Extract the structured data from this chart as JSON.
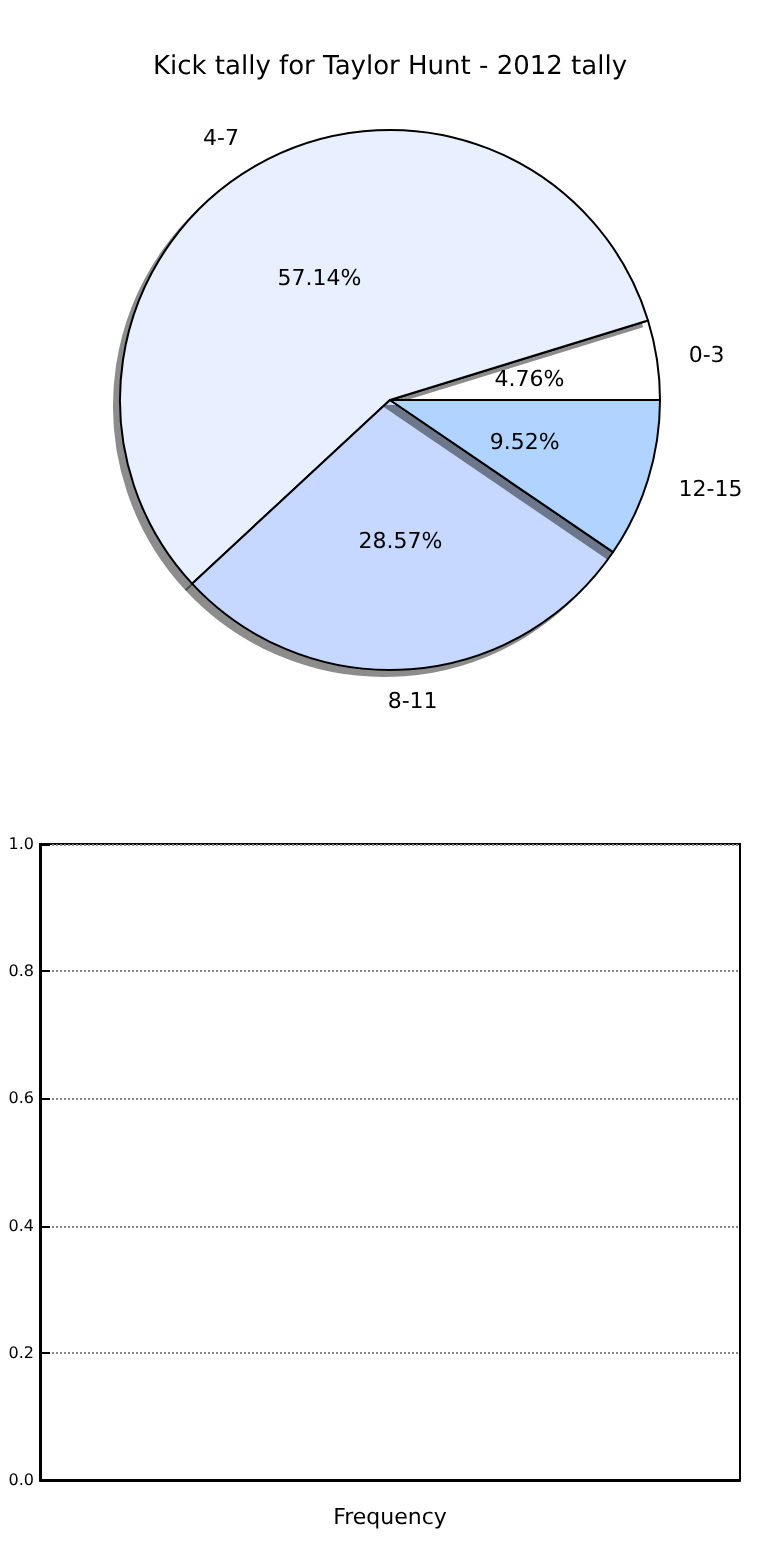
{
  "chart_data": [
    {
      "type": "pie",
      "title": "Kick tally for Taylor Hunt - 2012 tally",
      "categories": [
        "0-3",
        "4-7",
        "8-11",
        "12-15"
      ],
      "values": [
        4.76,
        57.14,
        28.57,
        9.52
      ],
      "colors": [
        "#ffffff",
        "#e8f0ff",
        "#c6d8ff",
        "#b0d4ff"
      ],
      "value_labels": [
        "4.76%",
        "57.14%",
        "28.57%",
        "9.52%"
      ]
    },
    {
      "type": "bar",
      "categories": [
        null
      ],
      "values": [
        null
      ],
      "xlabel": "Frequency",
      "ylim": [
        0,
        1
      ],
      "yticks": [
        {
          "value": 0,
          "label": "0.0"
        },
        {
          "value": 0.2,
          "label": "0.2"
        },
        {
          "value": 0.4,
          "label": "0.4"
        },
        {
          "value": 0.6,
          "label": "0.6"
        },
        {
          "value": 0.8,
          "label": "0.8"
        },
        {
          "value": 1,
          "label": "1.0"
        }
      ],
      "grid": "y"
    }
  ]
}
